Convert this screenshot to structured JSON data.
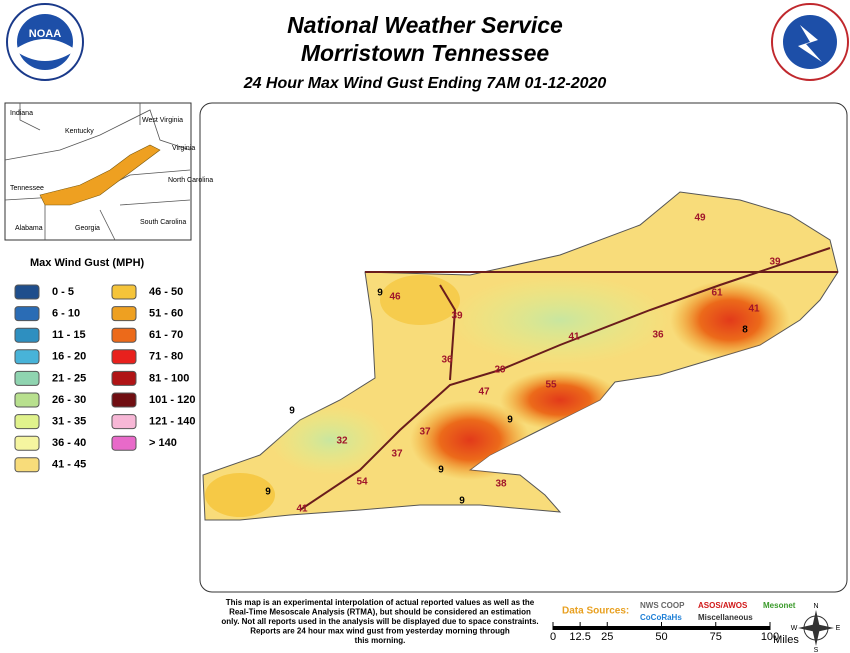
{
  "header": {
    "title": "National Weather Service",
    "subtitle": "Morristown Tennessee",
    "product": "24 Hour Max Wind Gust Ending 7AM 01-12-2020"
  },
  "logos": {
    "left": "NOAA"
  },
  "inset": {
    "labels": [
      "Indiana",
      "Kentucky",
      "West Virginia",
      "Virginia",
      "North Carolina",
      "Tennessee",
      "South Carolina",
      "Alabama",
      "Georgia"
    ]
  },
  "legend": {
    "title": "Max Wind Gust (MPH)",
    "items": [
      {
        "label": "0 - 5",
        "color": "#1f4e8c"
      },
      {
        "label": "6 - 10",
        "color": "#2a6cb5"
      },
      {
        "label": "11 - 15",
        "color": "#2e8fc0"
      },
      {
        "label": "16 - 20",
        "color": "#48b3d8"
      },
      {
        "label": "21 - 25",
        "color": "#8fd4b0"
      },
      {
        "label": "26 - 30",
        "color": "#b8e08e"
      },
      {
        "label": "31 - 35",
        "color": "#e0f28c"
      },
      {
        "label": "36 - 40",
        "color": "#f5f5a0"
      },
      {
        "label": "41 - 45",
        "color": "#f8dc7a"
      },
      {
        "label": "46 - 50",
        "color": "#f5c43a"
      },
      {
        "label": "51 - 60",
        "color": "#eea021"
      },
      {
        "label": "61 - 70",
        "color": "#ec6a1a"
      },
      {
        "label": "71 - 80",
        "color": "#e8211d"
      },
      {
        "label": "81 - 100",
        "color": "#b01416"
      },
      {
        "label": "101 - 120",
        "color": "#700e12"
      },
      {
        "label": "121 - 140",
        "color": "#f7b7d6"
      },
      {
        "label": "> 140",
        "color": "#e86ac9"
      }
    ]
  },
  "stations": [
    49,
    39,
    9,
    46,
    61,
    41,
    39,
    8,
    36,
    41,
    36,
    29,
    55,
    47,
    9,
    9,
    37,
    32,
    37,
    9,
    54,
    38,
    9,
    9,
    41
  ],
  "disclaimer": [
    "This map is an experimental interpolation of actual reported values as well as the",
    "Real-Time Mesoscale Analysis (RTMA), but should be considered an estimation",
    "only. Not all reports used in the analysis will be displayed due to space constraints.",
    "Reports are 24 hour max wind gust from yesterday morning through",
    "this morning."
  ],
  "sources": {
    "title": "Data Sources:",
    "items": [
      {
        "label": "NWS COOP",
        "color": "#666666"
      },
      {
        "label": "CoCoRaHs",
        "color": "#1e7fd6"
      },
      {
        "label": "ASOS/AWOS",
        "color": "#d01818"
      },
      {
        "label": "Miscellaneous",
        "color": "#333333"
      },
      {
        "label": "Mesonet",
        "color": "#3a9a2a"
      }
    ]
  },
  "scale": {
    "ticks": [
      0,
      12.5,
      25,
      50,
      75,
      100
    ],
    "unit": "Miles"
  },
  "compass": [
    "N",
    "E",
    "S",
    "W"
  ]
}
